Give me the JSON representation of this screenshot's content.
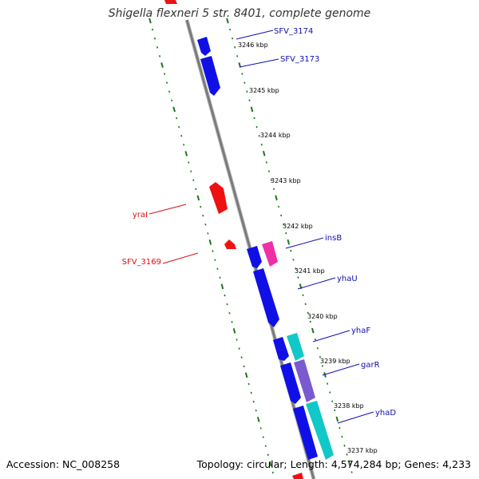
{
  "title": "Shigella flexneri 5 str. 8401, complete genome",
  "accession_label": "Accession: NC_008258",
  "topology_label": "Topology: circular; Length: 4,574,284 bp; Genes: 4,233",
  "colors": {
    "forward_gene": "#1010e6",
    "reverse_gene": "#ee1111",
    "insertion_element": "#ee2fa6",
    "cyan_gene": "#10c8c8",
    "purple_gene": "#7a5ad0",
    "label_forward": "#1010b0",
    "label_reverse": "#dd1010",
    "ruler": "#1a7a1a",
    "backbone": "#808080"
  },
  "ticks": [
    "3246 kbp",
    "3245 kbp",
    "3244 kbp",
    "3243 kbp",
    "3242 kbp",
    "3241 kbp",
    "3240 kbp",
    "3239 kbp",
    "3238 kbp",
    "3237 kbp"
  ],
  "gene_labels": [
    "SFV_3174",
    "SFV_3173",
    "insB",
    "yhaU",
    "yhaF",
    "garR",
    "yhaD",
    "yraI",
    "SFV_3169"
  ]
}
